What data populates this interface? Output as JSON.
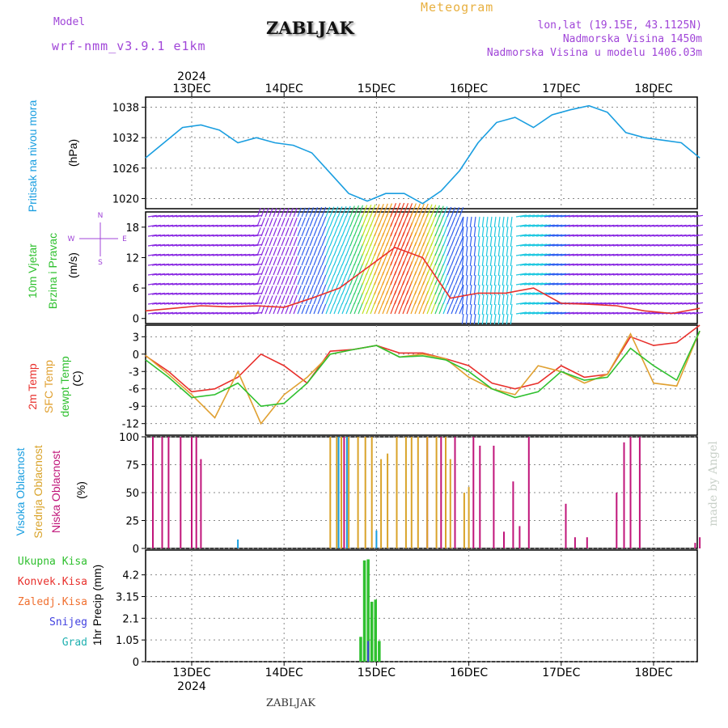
{
  "header": {
    "model_label": "Model",
    "model_name": "wrf-nmm_v3.9.1 e1km",
    "title": "ZABLJAK",
    "product": "Meteogram",
    "coords": "lon,lat (19.15E, 43.1125N)",
    "alt_real": "Nadmorska Visina 1450m",
    "alt_model": "Nadmorska Visina u modelu 1406.03m",
    "footer": "ZABLJAK",
    "watermark": "made by Angel"
  },
  "colors": {
    "pressure": "#1a9ee0",
    "temp2m": "#e8302c",
    "sfc": "#e0a030",
    "dewpt": "#2fc02f",
    "high_cloud": "#1a9ee0",
    "mid_cloud": "#d9a32a",
    "low_cloud": "#c0157a",
    "total_precip": "#2fc02f",
    "snow": "#4040e0",
    "header_purple": "#a045d8",
    "header_orange": "#e8b040"
  },
  "chart_data": [
    {
      "type": "line",
      "panel": "pressure",
      "ylabel_main": "Pritisak na nivou mora",
      "unit": "(hPa)",
      "ylim": [
        1018,
        1040
      ],
      "yticks": [
        "1038",
        "1032",
        "1026",
        "1020"
      ],
      "x_days": [
        0.0,
        0.2,
        0.4,
        0.6,
        0.8,
        1.0,
        1.2,
        1.4,
        1.6,
        1.8,
        2.0,
        2.2,
        2.4,
        2.6,
        2.8,
        3.0,
        3.2,
        3.4,
        3.6,
        3.8,
        4.0,
        4.2,
        4.4,
        4.6,
        4.8,
        5.0,
        5.2,
        5.4,
        5.6,
        5.8,
        6.0
      ],
      "values": [
        1028,
        1031,
        1034,
        1034.5,
        1033.5,
        1031,
        1032,
        1031,
        1030.5,
        1029,
        1025,
        1021,
        1019.5,
        1021,
        1021,
        1019,
        1021.5,
        1025.5,
        1031,
        1035,
        1036,
        1034,
        1036.5,
        1037.5,
        1038.3,
        1037,
        1033,
        1032,
        1031.5,
        1031,
        1028
      ],
      "grid": true
    },
    {
      "type": "line",
      "panel": "wind",
      "ylabel_main": "10m Vjetar",
      "ylabel_sub": "Brzina i Pravac",
      "unit": "(m/s)",
      "compass": [
        "N",
        "W",
        "E",
        "S"
      ],
      "ylim": [
        -1,
        21
      ],
      "yticks": [
        "18",
        "12",
        "6",
        "0"
      ],
      "x_days": [
        0.0,
        0.3,
        0.6,
        0.9,
        1.2,
        1.5,
        1.8,
        2.1,
        2.4,
        2.7,
        3.0,
        3.3,
        3.6,
        3.9,
        4.2,
        4.5,
        4.8,
        5.1,
        5.4,
        5.7,
        6.0
      ],
      "series": [
        {
          "values": [
            1.5,
            2,
            2.5,
            2.3,
            2.5,
            2.2,
            4,
            6,
            10,
            14,
            12,
            4,
            5,
            5,
            6,
            3,
            2.8,
            2.5,
            1.5,
            1,
            2
          ]
        }
      ]
    },
    {
      "type": "line",
      "panel": "temperature",
      "ylabels": [
        "2m Temp",
        "SFC Temp",
        "dewpt Temp"
      ],
      "unit": "(C)",
      "ylim": [
        -14,
        5
      ],
      "yticks": [
        "3",
        "0",
        "-3",
        "-6",
        "-9",
        "-12"
      ],
      "x_days": [
        0.0,
        0.25,
        0.5,
        0.75,
        1.0,
        1.25,
        1.5,
        1.75,
        2.0,
        2.25,
        2.5,
        2.75,
        3.0,
        3.25,
        3.5,
        3.75,
        4.0,
        4.25,
        4.5,
        4.75,
        5.0,
        5.25,
        5.5,
        5.75,
        6.0
      ],
      "series": [
        {
          "name": "2m Temp",
          "values": [
            -0.3,
            -3,
            -6.5,
            -6,
            -4,
            0,
            -2,
            -5,
            0.5,
            0.8,
            1.5,
            0.2,
            0.2,
            -0.8,
            -2,
            -5,
            -6,
            -5,
            -2,
            -4,
            -3.5,
            3,
            1.5,
            2,
            5
          ]
        },
        {
          "name": "SFC Temp",
          "values": [
            -0.2,
            -3.5,
            -7,
            -11,
            -3,
            -12,
            -7,
            -4,
            0,
            0.8,
            1.5,
            -0.5,
            0,
            -0.8,
            -4,
            -6,
            -7,
            -2,
            -3,
            -5,
            -3.5,
            3.5,
            -5,
            -5.5,
            4
          ]
        },
        {
          "name": "dewpt Temp",
          "values": [
            -1,
            -4,
            -7.5,
            -7,
            -5,
            -9,
            -8.5,
            -5,
            0,
            0.8,
            1.5,
            -0.5,
            -0.3,
            -1,
            -3,
            -6,
            -7.5,
            -6.5,
            -3,
            -4.5,
            -4,
            1,
            -2,
            -4.5,
            4
          ]
        }
      ],
      "grid": true
    },
    {
      "type": "bar",
      "panel": "clouds",
      "ylabels": [
        "Visoka Oblacnost",
        "Srednja Oblacnost",
        "Niska Oblacnost"
      ],
      "unit": "(%)",
      "ylim": [
        0,
        100
      ],
      "yticks": [
        "100",
        "75",
        "50",
        "25",
        "0"
      ],
      "series": [
        {
          "name": "Niska Oblacnost",
          "x": [
            0.08,
            0.18,
            0.25,
            0.38,
            0.5,
            0.55,
            0.6,
            2.15,
            3.05,
            3.2,
            3.35,
            3.55,
            3.62,
            3.77,
            3.88,
            3.98,
            4.05,
            4.15,
            4.55,
            4.65,
            4.78,
            5.1,
            5.18,
            5.25,
            5.35,
            5.95,
            6.0
          ],
          "values": [
            100,
            100,
            100,
            100,
            100,
            100,
            80,
            100,
            100,
            100,
            100,
            100,
            92,
            92,
            15,
            60,
            20,
            100,
            40,
            10,
            10,
            50,
            95,
            100,
            100,
            5,
            10
          ]
        },
        {
          "name": "Srednja Oblacnost",
          "x": [
            2.0,
            2.07,
            2.12,
            2.2,
            2.3,
            2.38,
            2.45,
            2.55,
            2.62,
            2.72,
            2.82,
            2.88,
            2.95,
            3.05,
            3.15,
            3.25,
            3.3,
            3.45,
            3.5
          ],
          "values": [
            100,
            100,
            100,
            100,
            100,
            100,
            100,
            80,
            85,
            100,
            100,
            100,
            100,
            100,
            100,
            100,
            80,
            50,
            55
          ]
        },
        {
          "name": "Visoka Oblacnost",
          "x": [
            1.0,
            2.09,
            2.18,
            2.5
          ],
          "values": [
            8,
            100,
            100,
            16
          ]
        }
      ],
      "grid": true
    },
    {
      "type": "bar",
      "panel": "precip",
      "ylabel": "1hr Precip (mm)",
      "legend": [
        "Ukupna Kisa",
        "Konvek.Kisa",
        "Zaledj.Kisa",
        "Snijeg",
        "Grad"
      ],
      "ylim": [
        0,
        5.4
      ],
      "yticks": [
        "4.2",
        "3.15",
        "2.1",
        "1.05",
        "0"
      ],
      "series": [
        {
          "name": "Ukupna Kisa",
          "x": [
            2.33,
            2.37,
            2.41,
            2.45,
            2.49,
            2.53
          ],
          "values": [
            1.2,
            4.9,
            4.95,
            2.9,
            3.0,
            1.0
          ]
        },
        {
          "name": "Snijeg",
          "x": [
            2.41
          ],
          "values": [
            1.0
          ]
        }
      ],
      "grid": true
    }
  ],
  "axes": {
    "year": "2024",
    "days": [
      "13DEC",
      "14DEC",
      "15DEC",
      "16DEC",
      "17DEC",
      "18DEC"
    ]
  }
}
